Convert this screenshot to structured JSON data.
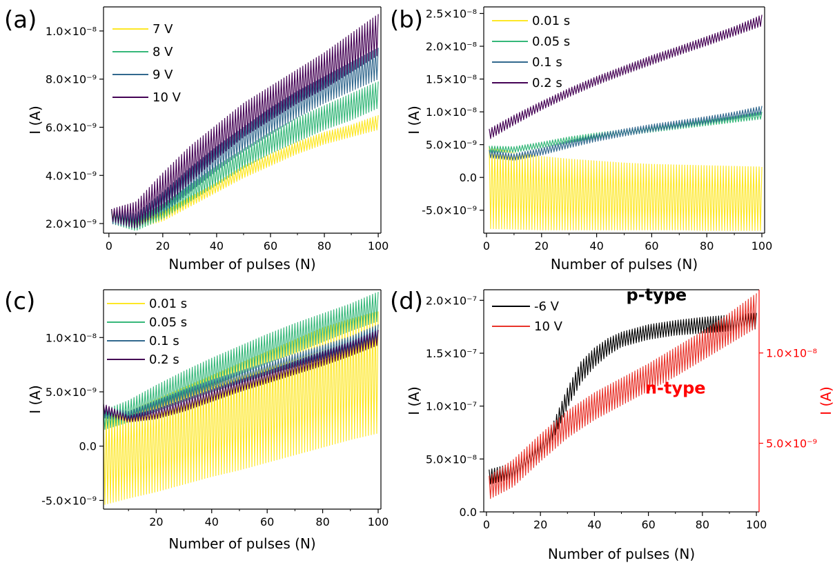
{
  "chart_data": [
    {
      "panel": "(a)",
      "type": "line",
      "xlabel": "Number of pulses (N)",
      "ylabel": "I (A)",
      "xlim": [
        -2,
        101
      ],
      "ylim": [
        1.6e-09,
        1.1e-08
      ],
      "xticks": [
        0,
        20,
        40,
        60,
        80,
        100
      ],
      "xtick_labels": [
        "0",
        "20",
        "40",
        "60",
        "80",
        "100"
      ],
      "yticks": [
        2e-09,
        4e-09,
        6e-09,
        8e-09,
        1e-08
      ],
      "ytick_labels": [
        "2.0×10⁻⁹",
        "4.0×10⁻⁹",
        "6.0×10⁻⁹",
        "8.0×10⁻⁹",
        "1.0×10⁻⁸"
      ],
      "legend": "top-left",
      "series": [
        {
          "name": "7 V",
          "color": "#fde725",
          "x": [
            1,
            10,
            20,
            30,
            40,
            50,
            60,
            70,
            80,
            90,
            100
          ],
          "high": [
            2.6e-09,
            2.1e-09,
            2.5e-09,
            3.1e-09,
            3.7e-09,
            4.4e-09,
            4.9e-09,
            5.4e-09,
            5.8e-09,
            6.1e-09,
            6.5e-09
          ],
          "low": [
            2.2e-09,
            1.8e-09,
            2.1e-09,
            2.7e-09,
            3.3e-09,
            3.9e-09,
            4.4e-09,
            4.9e-09,
            5.3e-09,
            5.6e-09,
            5.9e-09
          ]
        },
        {
          "name": "8 V",
          "color": "#35b779",
          "x": [
            1,
            10,
            20,
            30,
            40,
            50,
            60,
            70,
            80,
            90,
            100
          ],
          "high": [
            2.5e-09,
            2.2e-09,
            2.8e-09,
            3.6e-09,
            4.4e-09,
            5.1e-09,
            5.8e-09,
            6.4e-09,
            6.9e-09,
            7.4e-09,
            7.9e-09
          ],
          "low": [
            2e-09,
            1.7e-09,
            2.2e-09,
            2.9e-09,
            3.6e-09,
            4.3e-09,
            4.9e-09,
            5.4e-09,
            5.9e-09,
            6.3e-09,
            6.8e-09
          ]
        },
        {
          "name": "9 V",
          "color": "#31688e",
          "x": [
            1,
            10,
            20,
            30,
            40,
            50,
            60,
            70,
            80,
            90,
            100
          ],
          "high": [
            2.6e-09,
            2.4e-09,
            3.3e-09,
            4.3e-09,
            5.2e-09,
            6e-09,
            6.8e-09,
            7.5e-09,
            8.1e-09,
            8.7e-09,
            9.3e-09
          ],
          "low": [
            2e-09,
            1.8e-09,
            2.4e-09,
            3.3e-09,
            4.2e-09,
            5e-09,
            5.7e-09,
            6.4e-09,
            7e-09,
            7.5e-09,
            8e-09
          ]
        },
        {
          "name": "10 V",
          "color": "#440154",
          "x": [
            1,
            10,
            20,
            30,
            40,
            50,
            60,
            70,
            80,
            90,
            100
          ],
          "high": [
            2.6e-09,
            2.9e-09,
            4.1e-09,
            5.2e-09,
            6.1e-09,
            7e-09,
            7.7e-09,
            8.4e-09,
            9.1e-09,
            9.9e-09,
            1.07e-08
          ],
          "low": [
            2.1e-09,
            1.8e-09,
            2.6e-09,
            3.7e-09,
            4.7e-09,
            5.6e-09,
            6.3e-09,
            7e-09,
            7.6e-09,
            8.3e-09,
            9e-09
          ]
        }
      ]
    },
    {
      "panel": "(b)",
      "type": "line",
      "xlabel": "Number of pulses (N)",
      "ylabel": "I (A)",
      "xlim": [
        -1,
        101
      ],
      "ylim": [
        -8.5e-09,
        2.6e-08
      ],
      "xticks": [
        0,
        20,
        40,
        60,
        80,
        100
      ],
      "xtick_labels": [
        "0",
        "20",
        "40",
        "60",
        "80",
        "100"
      ],
      "yticks": [
        -5e-09,
        0,
        5e-09,
        1e-08,
        1.5e-08,
        2e-08,
        2.5e-08
      ],
      "ytick_labels": [
        "-5.0×10⁻⁹",
        "0.0",
        "5.0×10⁻⁹",
        "1.0×10⁻⁸",
        "1.5×10⁻⁸",
        "2.0×10⁻⁸",
        "2.5×10⁻⁸"
      ],
      "legend": "top-left",
      "series": [
        {
          "name": "0.01 s",
          "color": "#fde725",
          "x": [
            1,
            10,
            20,
            30,
            40,
            50,
            60,
            70,
            80,
            90,
            100
          ],
          "high": [
            4.7e-09,
            3.8e-09,
            3.2e-09,
            2.8e-09,
            2.5e-09,
            2.2e-09,
            2e-09,
            1.9e-09,
            1.8e-09,
            1.7e-09,
            1.6e-09
          ],
          "low": [
            -7.8e-09,
            -7.9e-09,
            -8e-09,
            -8e-09,
            -8e-09,
            -8e-09,
            -8e-09,
            -8e-09,
            -8.1e-09,
            -8.1e-09,
            -8.1e-09
          ]
        },
        {
          "name": "0.05 s",
          "color": "#35b779",
          "x": [
            1,
            10,
            20,
            30,
            40,
            50,
            60,
            70,
            80,
            90,
            100
          ],
          "high": [
            4.8e-09,
            4.7e-09,
            5.4e-09,
            6.2e-09,
            6.8e-09,
            7.3e-09,
            7.8e-09,
            8.3e-09,
            8.8e-09,
            9.3e-09,
            1e-08
          ],
          "low": [
            3.8e-09,
            3.8e-09,
            4.5e-09,
            5.3e-09,
            5.9e-09,
            6.4e-09,
            6.9e-09,
            7.4e-09,
            7.9e-09,
            8.4e-09,
            8.9e-09
          ]
        },
        {
          "name": "0.1 s",
          "color": "#31688e",
          "x": [
            1,
            10,
            20,
            30,
            40,
            50,
            60,
            70,
            80,
            90,
            100
          ],
          "high": [
            4.2e-09,
            3.6e-09,
            4.5e-09,
            5.6e-09,
            6.6e-09,
            7.4e-09,
            8.1e-09,
            8.7e-09,
            9.3e-09,
            1e-08,
            1.09e-08
          ],
          "low": [
            3e-09,
            2.6e-09,
            3.4e-09,
            4.5e-09,
            5.5e-09,
            6.3e-09,
            7e-09,
            7.6e-09,
            8.2e-09,
            8.9e-09,
            9.6e-09
          ]
        },
        {
          "name": "0.2 s",
          "color": "#440154",
          "x": [
            1,
            10,
            20,
            30,
            40,
            50,
            60,
            70,
            80,
            90,
            100
          ],
          "high": [
            7.4e-09,
            9.5e-09,
            1.16e-08,
            1.36e-08,
            1.54e-08,
            1.7e-08,
            1.86e-08,
            2e-08,
            2.15e-08,
            2.3e-08,
            2.48e-08
          ],
          "low": [
            5.8e-09,
            8e-09,
            1.03e-08,
            1.23e-08,
            1.41e-08,
            1.57e-08,
            1.72e-08,
            1.87e-08,
            2.01e-08,
            2.16e-08,
            2.31e-08
          ]
        }
      ]
    },
    {
      "panel": "(c)",
      "type": "line",
      "xlabel": "Number of pulses (N)",
      "ylabel": "I (A)",
      "xlim": [
        1,
        101
      ],
      "ylim": [
        -5.8e-09,
        1.44e-08
      ],
      "xticks": [
        20,
        40,
        60,
        80,
        100
      ],
      "xtick_labels": [
        "20",
        "40",
        "60",
        "80",
        "100"
      ],
      "yticks": [
        -5e-09,
        0,
        5e-09,
        1e-08
      ],
      "ytick_labels": [
        "-5.0×10⁻⁹",
        "0.0",
        "5.0×10⁻⁹",
        "1.0×10⁻⁸"
      ],
      "legend": "top-left",
      "series": [
        {
          "name": "0.01 s",
          "color": "#fde725",
          "x": [
            1,
            10,
            20,
            30,
            40,
            50,
            60,
            70,
            80,
            90,
            100
          ],
          "high": [
            2.6e-09,
            3.2e-09,
            4.3e-09,
            5.4e-09,
            6.5e-09,
            7.6e-09,
            8.7e-09,
            9.8e-09,
            1.09e-08,
            1.17e-08,
            1.24e-08
          ],
          "low": [
            -5.4e-09,
            -4.8e-09,
            -4.2e-09,
            -3.5e-09,
            -2.8e-09,
            -2.2e-09,
            -1.5e-09,
            -8e-10,
            -1e-10,
            6e-10,
            1.2e-09
          ]
        },
        {
          "name": "0.05 s",
          "color": "#35b779",
          "x": [
            1,
            10,
            20,
            30,
            40,
            50,
            60,
            70,
            80,
            90,
            100
          ],
          "high": [
            3.3e-09,
            4.2e-09,
            5.6e-09,
            6.9e-09,
            8.1e-09,
            9.2e-09,
            1.03e-08,
            1.13e-08,
            1.22e-08,
            1.31e-08,
            1.42e-08
          ],
          "low": [
            1.5e-09,
            2.2e-09,
            3.2e-09,
            4.4e-09,
            5.5e-09,
            6.6e-09,
            7.6e-09,
            8.6e-09,
            9.6e-09,
            1.06e-08,
            1.15e-08
          ]
        },
        {
          "name": "0.1 s",
          "color": "#31688e",
          "x": [
            1,
            10,
            20,
            30,
            40,
            50,
            60,
            70,
            80,
            90,
            100
          ],
          "high": [
            3.6e-09,
            3.2e-09,
            4.2e-09,
            5.2e-09,
            6.1e-09,
            6.9e-09,
            7.7e-09,
            8.5e-09,
            9.3e-09,
            1.01e-08,
            1.12e-08
          ],
          "low": [
            2.6e-09,
            2.3e-09,
            3.2e-09,
            4.1e-09,
            5e-09,
            5.8e-09,
            6.6e-09,
            7.3e-09,
            8e-09,
            8.8e-09,
            9.6e-09
          ]
        },
        {
          "name": "0.2 s",
          "color": "#440154",
          "x": [
            1,
            10,
            20,
            30,
            40,
            50,
            60,
            70,
            80,
            90,
            100
          ],
          "high": [
            3.9e-09,
            2.8e-09,
            3.4e-09,
            4.3e-09,
            5.2e-09,
            6.1e-09,
            6.9e-09,
            7.8e-09,
            8.7e-09,
            9.6e-09,
            1.07e-08
          ],
          "low": [
            3e-09,
            2.2e-09,
            2.5e-09,
            3.2e-09,
            4.1e-09,
            5e-09,
            5.8e-09,
            6.6e-09,
            7.4e-09,
            8.3e-09,
            9.3e-09
          ]
        }
      ]
    },
    {
      "panel": "(d)",
      "type": "line",
      "xlabel": "Number of pulses (N)",
      "ylabel": "I (A)",
      "y2label": "I (A)",
      "xlim": [
        -1,
        101
      ],
      "ylim": [
        0,
        2.1e-07
      ],
      "y2lim": [
        1.2e-09,
        1.35e-08
      ],
      "xticks": [
        0,
        20,
        40,
        60,
        80,
        100
      ],
      "xtick_labels": [
        "0",
        "20",
        "40",
        "60",
        "80",
        "100"
      ],
      "yticks": [
        0,
        5e-08,
        1e-07,
        1.5e-07,
        2e-07
      ],
      "ytick_labels": [
        "0.0",
        "5.0×10⁻⁸",
        "1.0×10⁻⁷",
        "1.5×10⁻⁷",
        "2.0×10⁻⁷"
      ],
      "y2ticks": [
        5e-09,
        1e-08
      ],
      "y2tick_labels": [
        "5.0×10⁻⁹",
        "1.0×10⁻⁸"
      ],
      "y2color": "#ff0000",
      "legend": "top-left",
      "annotations": [
        {
          "text": "p-type",
          "color": "#000000",
          "x": 63,
          "y": 2e-07
        },
        {
          "text": "n-type",
          "color": "#ff0000",
          "x": 70,
          "y": 1.12e-07
        }
      ],
      "series": [
        {
          "name": "-6 V",
          "color": "#000000",
          "axis": "left",
          "x": [
            1,
            10,
            20,
            25,
            30,
            35,
            40,
            45,
            50,
            60,
            70,
            80,
            90,
            100
          ],
          "high": [
            4e-08,
            4.6e-08,
            6.5e-08,
            8.6e-08,
            1.17e-07,
            1.42e-07,
            1.55e-07,
            1.64e-07,
            1.7e-07,
            1.77e-07,
            1.81e-07,
            1.84e-07,
            1.86e-07,
            1.88e-07
          ],
          "low": [
            2.6e-08,
            3.2e-08,
            5e-08,
            7e-08,
            9.8e-08,
            1.22e-07,
            1.37e-07,
            1.48e-07,
            1.56e-07,
            1.63e-07,
            1.67e-07,
            1.69e-07,
            1.71e-07,
            1.73e-07
          ]
        },
        {
          "name": "10 V",
          "color": "#e8332a",
          "axis": "right",
          "x": [
            1,
            10,
            20,
            30,
            40,
            50,
            60,
            70,
            80,
            90,
            100
          ],
          "high": [
            3.2e-09,
            4.1e-09,
            5.5e-09,
            6.8e-09,
            7.8e-09,
            8.6e-09,
            9.4e-09,
            1.03e-08,
            1.12e-08,
            1.22e-08,
            1.33e-08
          ],
          "low": [
            1.9e-09,
            2.6e-09,
            4e-09,
            5.3e-09,
            6.3e-09,
            7.1e-09,
            7.9e-09,
            8.7e-09,
            9.6e-09,
            1.05e-08,
            1.14e-08
          ]
        }
      ]
    }
  ]
}
